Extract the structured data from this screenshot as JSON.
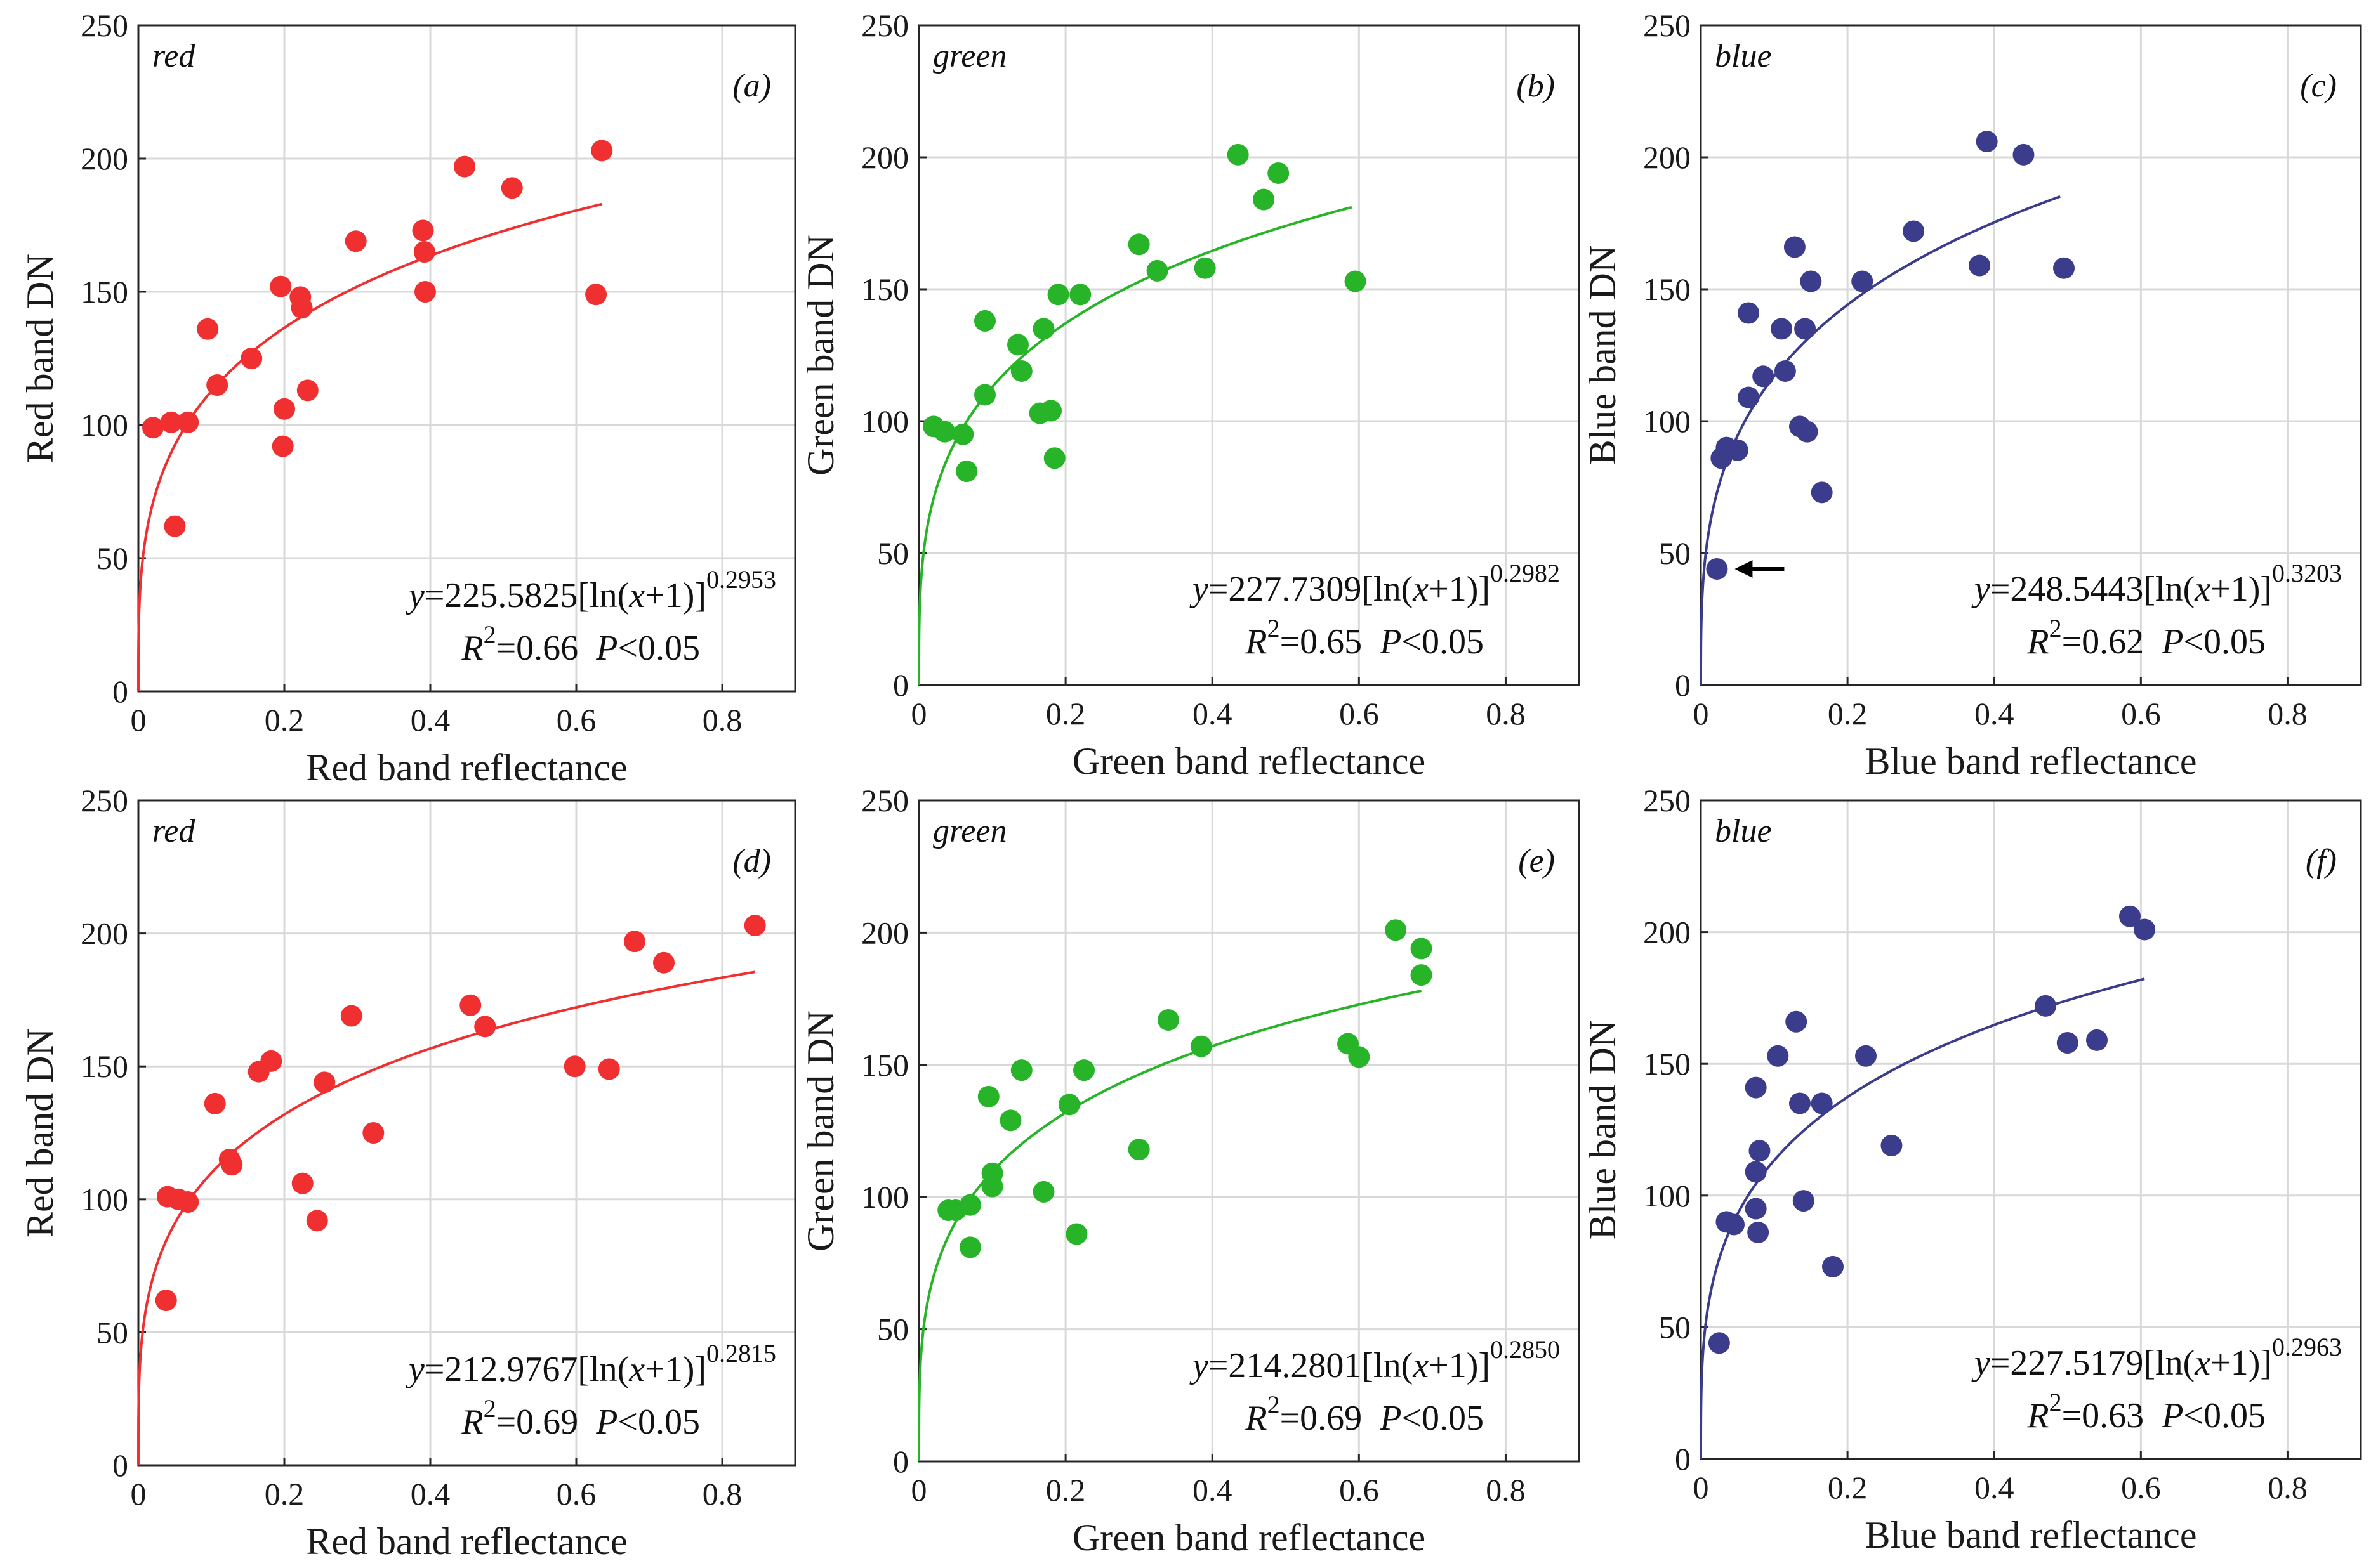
{
  "chart_data": [
    {
      "type": "scatter",
      "panel_label": "(a)",
      "band_label": "red",
      "color": "#f03030",
      "xlabel": "Red band reflectance",
      "ylabel": "Red band DN",
      "xlim": [
        0,
        0.9
      ],
      "ylim": [
        0,
        250
      ],
      "xticks": [
        "0",
        "0.2",
        "0.4",
        "0.6",
        "0.8"
      ],
      "yticks": [
        "0",
        "50",
        "100",
        "150",
        "200",
        "250"
      ],
      "fit": {
        "a": 225.5825,
        "b": 0.2953,
        "x_max": 0.635,
        "equation": {
          "lhs": "y",
          "coef": "=225.5825[ln(",
          "var": "x",
          "tail": "+1)]",
          "exp": "0.2953"
        },
        "stats": {
          "r2_label": "R",
          "r2_exp": "2",
          "r2_value": "=0.66",
          "p_label": "P",
          "p_value": "<0.05"
        }
      },
      "x": [
        0.02,
        0.045,
        0.05,
        0.068,
        0.095,
        0.108,
        0.155,
        0.195,
        0.198,
        0.2,
        0.222,
        0.224,
        0.232,
        0.298,
        0.39,
        0.392,
        0.393,
        0.447,
        0.512,
        0.627,
        0.635
      ],
      "y": [
        99,
        101,
        62,
        101,
        136,
        115,
        125,
        152,
        92,
        106,
        148,
        144,
        113,
        169,
        173,
        165,
        150,
        197,
        189,
        149,
        203
      ]
    },
    {
      "type": "scatter",
      "panel_label": "(b)",
      "band_label": "green",
      "color": "#28b428",
      "xlabel": "Green band reflectance",
      "ylabel": "Green band DN",
      "xlim": [
        0,
        0.9
      ],
      "ylim": [
        0,
        250
      ],
      "xticks": [
        "0",
        "0.2",
        "0.4",
        "0.6",
        "0.8"
      ],
      "yticks": [
        "0",
        "50",
        "100",
        "150",
        "200",
        "250"
      ],
      "fit": {
        "a": 227.7309,
        "b": 0.2982,
        "x_max": 0.59,
        "equation": {
          "lhs": "y",
          "coef": "=227.7309[ln(",
          "var": "x",
          "tail": "+1)]",
          "exp": "0.2982"
        },
        "stats": {
          "r2_label": "R",
          "r2_exp": "2",
          "r2_value": "=0.65",
          "p_label": "P",
          "p_value": "<0.05"
        }
      },
      "x": [
        0.02,
        0.035,
        0.06,
        0.065,
        0.09,
        0.09,
        0.135,
        0.14,
        0.165,
        0.17,
        0.18,
        0.185,
        0.19,
        0.22,
        0.3,
        0.325,
        0.39,
        0.435,
        0.47,
        0.49,
        0.595
      ],
      "y": [
        98,
        96,
        95,
        81,
        138,
        110,
        129,
        119,
        103,
        135,
        104,
        86,
        148,
        148,
        167,
        157,
        158,
        201,
        184,
        194,
        153
      ]
    },
    {
      "type": "scatter",
      "panel_label": "(c)",
      "band_label": "blue",
      "color": "#3c3c8c",
      "xlabel": "Blue band reflectance",
      "ylabel": "Blue band DN",
      "xlim": [
        0,
        0.9
      ],
      "ylim": [
        0,
        250
      ],
      "xticks": [
        "0",
        "0.2",
        "0.4",
        "0.6",
        "0.8"
      ],
      "yticks": [
        "0",
        "50",
        "100",
        "150",
        "200",
        "250"
      ],
      "fit": {
        "a": 248.5443,
        "b": 0.3203,
        "x_max": 0.49,
        "equation": {
          "lhs": "y",
          "coef": "=248.5443[ln(",
          "var": "x",
          "tail": "+1)]",
          "exp": "0.3203"
        },
        "stats": {
          "r2_label": "R",
          "r2_exp": "2",
          "r2_value": "=0.62",
          "p_label": "P",
          "p_value": "<0.05"
        }
      },
      "annotation": {
        "type": "arrow",
        "x": 0.022,
        "y": 44
      },
      "x": [
        0.022,
        0.028,
        0.035,
        0.05,
        0.065,
        0.065,
        0.085,
        0.11,
        0.115,
        0.128,
        0.135,
        0.142,
        0.145,
        0.15,
        0.165,
        0.22,
        0.29,
        0.38,
        0.39,
        0.44,
        0.495
      ],
      "y": [
        44,
        86,
        90,
        89,
        109,
        141,
        117,
        135,
        119,
        166,
        98,
        135,
        96,
        153,
        73,
        153,
        172,
        159,
        206,
        201,
        158
      ]
    },
    {
      "type": "scatter",
      "panel_label": "(d)",
      "band_label": "red",
      "color": "#f03030",
      "xlabel": "Red band reflectance",
      "ylabel": "Red band DN",
      "xlim": [
        0,
        0.9
      ],
      "ylim": [
        0,
        250
      ],
      "xticks": [
        "0",
        "0.2",
        "0.4",
        "0.6",
        "0.8"
      ],
      "yticks": [
        "0",
        "50",
        "100",
        "150",
        "200",
        "250"
      ],
      "fit": {
        "a": 212.9767,
        "b": 0.2815,
        "x_max": 0.845,
        "equation": {
          "lhs": "y",
          "coef": "=212.9767[ln(",
          "var": "x",
          "tail": "+1)]",
          "exp": "0.2815"
        },
        "stats": {
          "r2_label": "R",
          "r2_exp": "2",
          "r2_value": "=0.69",
          "p_label": "P",
          "p_value": "<0.05"
        }
      },
      "x": [
        0.038,
        0.04,
        0.055,
        0.068,
        0.105,
        0.125,
        0.128,
        0.165,
        0.182,
        0.225,
        0.245,
        0.255,
        0.292,
        0.322,
        0.455,
        0.475,
        0.598,
        0.645,
        0.68,
        0.72,
        0.845
      ],
      "y": [
        62,
        101,
        100,
        99,
        136,
        115,
        113,
        148,
        152,
        106,
        92,
        144,
        169,
        125,
        173,
        165,
        150,
        149,
        197,
        189,
        203
      ]
    },
    {
      "type": "scatter",
      "panel_label": "(e)",
      "band_label": "green",
      "color": "#28b428",
      "xlabel": "Green band reflectance",
      "ylabel": "Green band DN",
      "xlim": [
        0,
        0.9
      ],
      "ylim": [
        0,
        250
      ],
      "xticks": [
        "0",
        "0.2",
        "0.4",
        "0.6",
        "0.8"
      ],
      "yticks": [
        "0",
        "50",
        "100",
        "150",
        "200",
        "250"
      ],
      "fit": {
        "a": 214.2801,
        "b": 0.285,
        "x_max": 0.685,
        "equation": {
          "lhs": "y",
          "coef": "=214.2801[ln(",
          "var": "x",
          "tail": "+1)]",
          "exp": "0.2850"
        },
        "stats": {
          "r2_label": "R",
          "r2_exp": "2",
          "r2_value": "=0.69",
          "p_label": "P",
          "p_value": "<0.05"
        }
      },
      "x": [
        0.04,
        0.05,
        0.07,
        0.07,
        0.095,
        0.1,
        0.1,
        0.125,
        0.14,
        0.17,
        0.205,
        0.215,
        0.225,
        0.3,
        0.34,
        0.385,
        0.585,
        0.6,
        0.65,
        0.685,
        0.685
      ],
      "y": [
        95,
        95,
        97,
        81,
        138,
        109,
        104,
        129,
        148,
        102,
        135,
        86,
        148,
        118,
        167,
        157,
        158,
        153,
        201,
        194,
        184
      ]
    },
    {
      "type": "scatter",
      "panel_label": "(f)",
      "band_label": "blue",
      "color": "#3c3c8c",
      "xlabel": "Blue band reflectance",
      "ylabel": "Blue band DN",
      "xlim": [
        0,
        0.9
      ],
      "ylim": [
        0,
        250
      ],
      "xticks": [
        "0",
        "0.2",
        "0.4",
        "0.6",
        "0.8"
      ],
      "yticks": [
        "0",
        "50",
        "100",
        "150",
        "200",
        "250"
      ],
      "fit": {
        "a": 227.5179,
        "b": 0.2963,
        "x_max": 0.605,
        "equation": {
          "lhs": "y",
          "coef": "=227.5179[ln(",
          "var": "x",
          "tail": "+1)]",
          "exp": "0.2963"
        },
        "stats": {
          "r2_label": "R",
          "r2_exp": "2",
          "r2_value": "=0.63",
          "p_label": "P",
          "p_value": "<0.05"
        }
      },
      "x": [
        0.025,
        0.035,
        0.045,
        0.075,
        0.075,
        0.075,
        0.078,
        0.08,
        0.105,
        0.13,
        0.135,
        0.14,
        0.165,
        0.18,
        0.225,
        0.26,
        0.47,
        0.5,
        0.54,
        0.585,
        0.605
      ],
      "y": [
        44,
        90,
        89,
        109,
        141,
        95,
        86,
        117,
        153,
        166,
        135,
        98,
        135,
        73,
        153,
        119,
        172,
        158,
        159,
        206,
        201
      ]
    }
  ]
}
